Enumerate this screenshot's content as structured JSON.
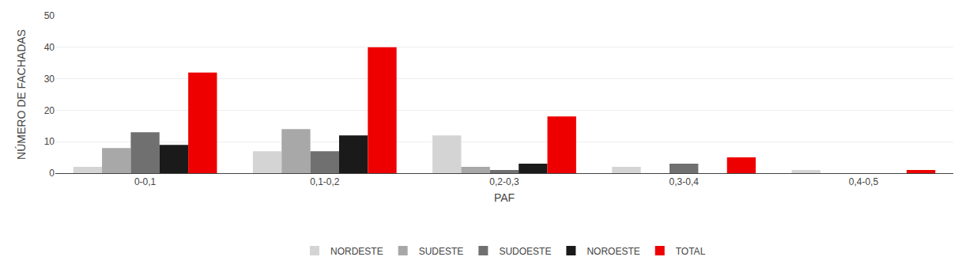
{
  "chart_data": {
    "type": "bar",
    "categories": [
      "0-0,1",
      "0,1-0,2",
      "0,2-0,3",
      "0,3-0,4",
      "0,4-0,5"
    ],
    "series": [
      {
        "name": "NORDESTE",
        "color": "#d4d4d4",
        "values": [
          2,
          7,
          12,
          2,
          1
        ]
      },
      {
        "name": "SUDESTE",
        "color": "#a8a8a8",
        "values": [
          8,
          14,
          2,
          0,
          0
        ]
      },
      {
        "name": "SUDOESTE",
        "color": "#707070",
        "values": [
          13,
          7,
          1,
          3,
          0
        ]
      },
      {
        "name": "NOROESTE",
        "color": "#1a1a1a",
        "values": [
          9,
          12,
          3,
          0,
          0
        ]
      },
      {
        "name": "TOTAL",
        "color": "#ee0000",
        "values": [
          32,
          40,
          18,
          5,
          1
        ]
      }
    ],
    "xlabel": "PAF",
    "ylabel": "NÚMERO DE FACHADAS",
    "ylim": [
      0,
      50
    ],
    "yticks": [
      0,
      10,
      20,
      30,
      40,
      50
    ],
    "grid": true,
    "legend": "bottom"
  }
}
